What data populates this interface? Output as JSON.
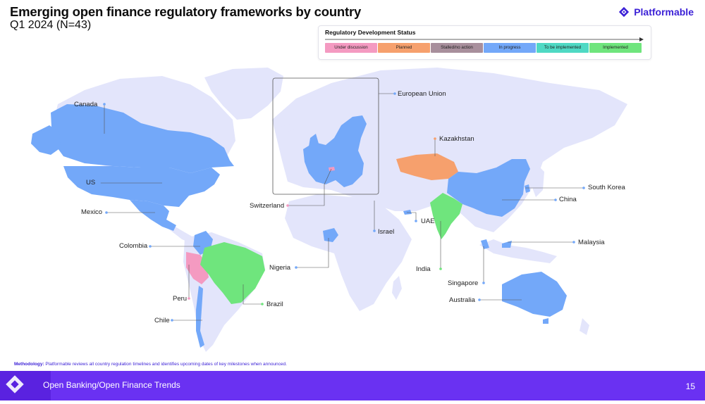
{
  "header": {
    "title": "Emerging open finance regulatory frameworks by country",
    "subtitle": "Q1 2024 (N=43)",
    "brand": "Platformable"
  },
  "legend": {
    "title": "Regulatory Development Status",
    "items": [
      {
        "label": "Under discussion",
        "color": "#f49ac1"
      },
      {
        "label": "Planned",
        "color": "#f6a06d"
      },
      {
        "label": "Stalled/no action",
        "color": "#a88f9c"
      },
      {
        "label": "In progress",
        "color": "#73a8f9"
      },
      {
        "label": "To be implemented",
        "color": "#4fd9c4"
      },
      {
        "label": "Implemented",
        "color": "#6fe57d"
      }
    ]
  },
  "colors": {
    "land": "#e3e5fb",
    "leader": "#555555",
    "brand": "#3a1fd6",
    "footer": "#6a31f2"
  },
  "countries": {
    "european_union": "European Union",
    "kazakhstan": "Kazakhstan",
    "canada": "Canada",
    "us": "US",
    "mexico": "Mexico",
    "switzerland": "Switzerland",
    "south_korea": "South Korea",
    "china": "China",
    "uae": "UAE",
    "israel": "Israel",
    "malaysia": "Malaysia",
    "colombia": "Colombia",
    "nigeria": "Nigeria",
    "india": "India",
    "singapore": "Singapore",
    "peru": "Peru",
    "brazil": "Brazil",
    "australia": "Australia",
    "chile": "Chile"
  },
  "methodology": {
    "label": "Methodology:",
    "text": "Platformable reviews all country regulation timelines and identifies upcoming dates of key milestones when announced."
  },
  "footer": {
    "text": "Open Banking/Open Finance Trends",
    "page": "15"
  }
}
